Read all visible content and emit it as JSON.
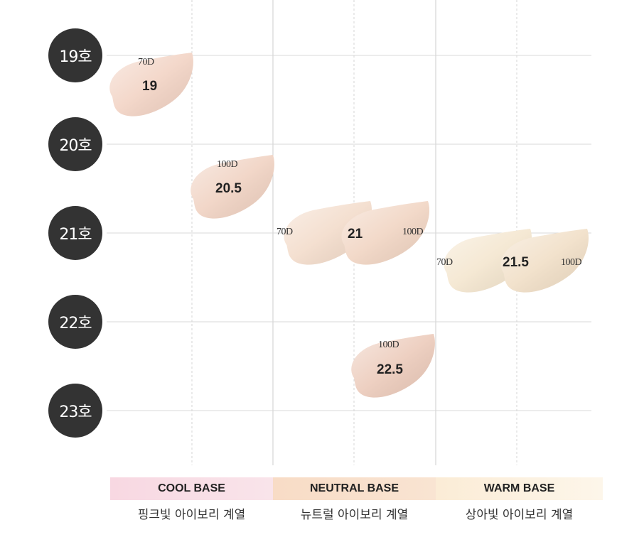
{
  "levels": [
    "19호",
    "20호",
    "21호",
    "22호",
    "23호"
  ],
  "bases": [
    {
      "title": "COOL BASE",
      "subtitle": "핑크빛 아이보리 계열",
      "color": "#f8dde6"
    },
    {
      "title": "NEUTRAL BASE",
      "subtitle": "뉴트럴 아이보리 계열",
      "color": "#f8e0cc"
    },
    {
      "title": "WARM BASE",
      "subtitle": "상아빛 아이보리 계열",
      "color": "#fbf0dc"
    }
  ],
  "shades": [
    {
      "number": "19",
      "variant": "70D",
      "color": "#f2d3c4"
    },
    {
      "number": "20.5",
      "variant": "100D",
      "color": "#f0d2c2"
    },
    {
      "number": "21",
      "variant_left": "70D",
      "variant_right": "100D",
      "color_left": "#f3dccb",
      "color_right": "#f1d5c3"
    },
    {
      "number": "21.5",
      "variant_left": "70D",
      "variant_right": "100D",
      "color_left": "#f4e6cf",
      "color_right": "#f1dfc7"
    },
    {
      "number": "22.5",
      "variant": "100D",
      "color": "#eccbbb"
    }
  ],
  "colors": {
    "grid": "#d8d8d8",
    "circle": "#333333"
  }
}
